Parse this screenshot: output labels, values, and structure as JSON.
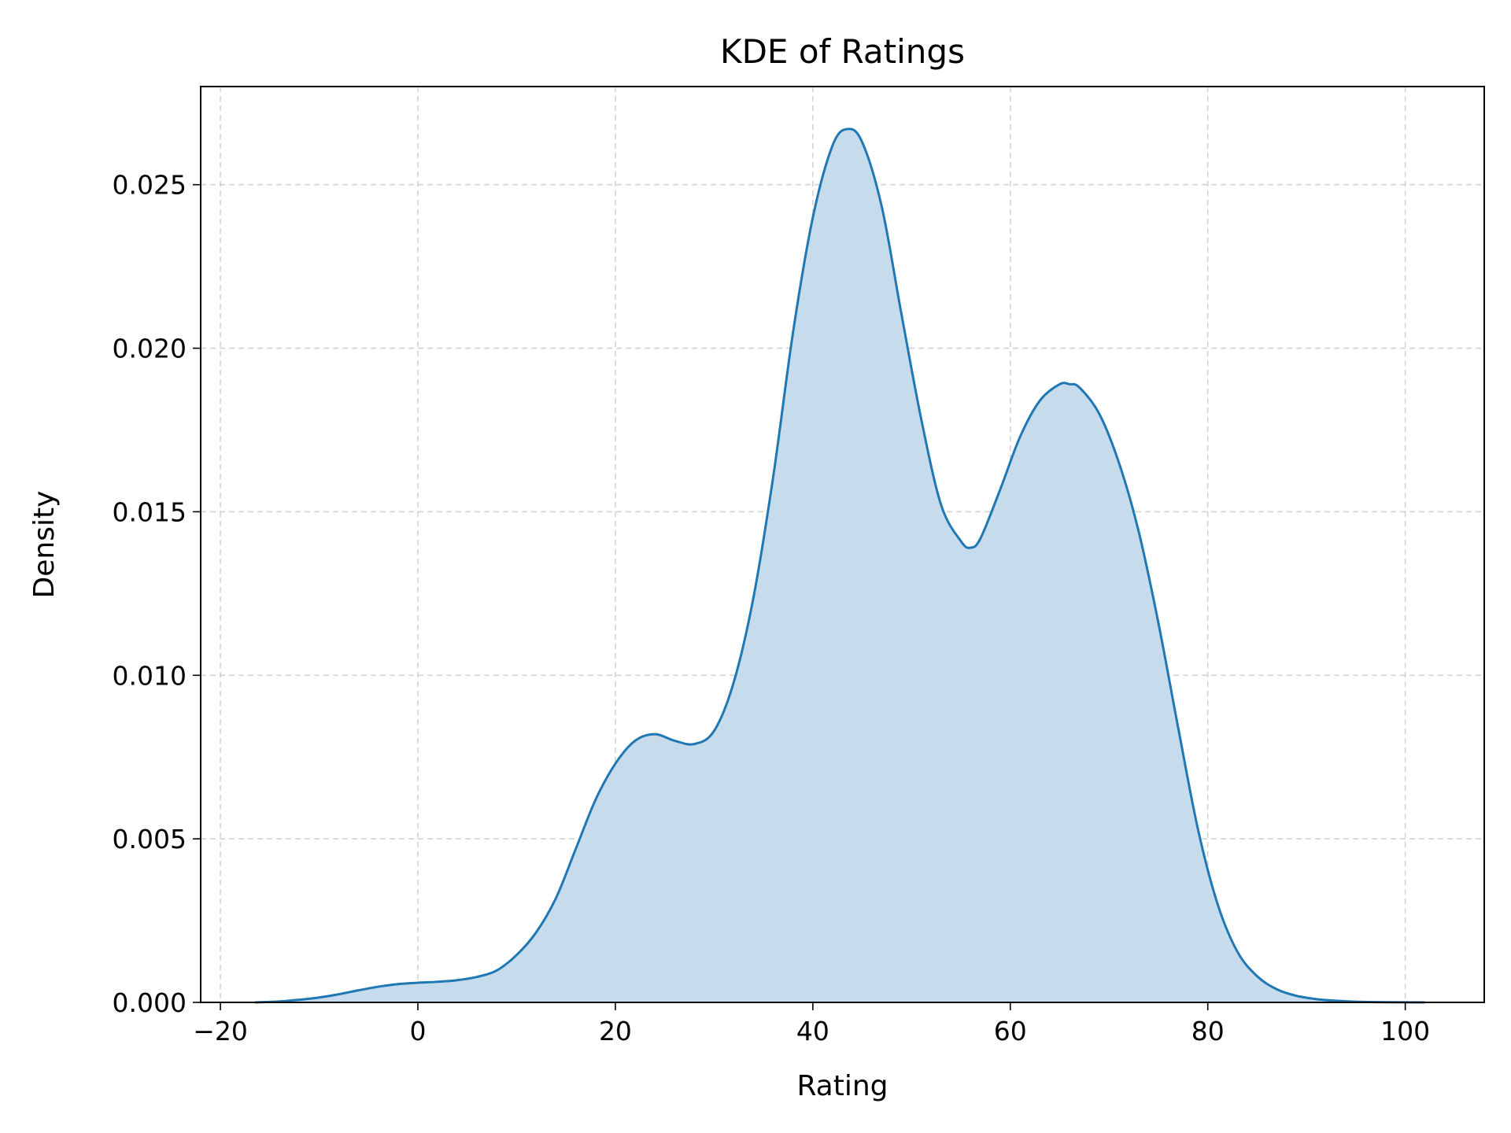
{
  "chart_data": {
    "type": "area",
    "title": "KDE of Ratings",
    "xlabel": "Rating",
    "ylabel": "Density",
    "xlim": [
      -22,
      108
    ],
    "ylim": [
      0,
      0.028
    ],
    "xticks": [
      -20,
      0,
      20,
      40,
      60,
      80,
      100
    ],
    "xtick_labels": [
      "−20",
      "0",
      "20",
      "40",
      "60",
      "80",
      "100"
    ],
    "yticks": [
      0,
      0.005,
      0.01,
      0.015,
      0.02,
      0.025
    ],
    "ytick_labels": [
      "0.000",
      "0.005",
      "0.010",
      "0.015",
      "0.020",
      "0.025"
    ],
    "grid": true,
    "line_color": "#1f77b4",
    "fill_color": "#c6dbec",
    "series": [
      {
        "x": [
          -16.5,
          -14,
          -12,
          -10,
          -8,
          -6,
          -4,
          -2,
          0,
          2,
          4,
          6,
          8,
          10,
          12,
          14,
          16,
          18,
          20,
          22,
          24,
          26,
          28,
          30,
          32,
          34,
          36,
          38,
          40,
          42,
          43.5,
          45,
          47,
          49,
          51,
          53,
          55,
          56,
          57,
          59,
          61,
          63,
          65,
          66,
          67,
          69,
          71,
          73,
          75,
          77,
          79,
          81,
          83,
          85,
          87,
          89,
          91,
          93,
          95,
          98,
          102
        ],
        "y": [
          0,
          3e-05,
          8e-05,
          0.00015,
          0.00025,
          0.00037,
          0.00048,
          0.00056,
          0.0006,
          0.00063,
          0.00068,
          0.00078,
          0.00098,
          0.00145,
          0.00215,
          0.0032,
          0.0047,
          0.0062,
          0.0073,
          0.008,
          0.0082,
          0.008,
          0.0079,
          0.0083,
          0.0098,
          0.0124,
          0.0161,
          0.0205,
          0.024,
          0.0262,
          0.0267,
          0.0263,
          0.0243,
          0.021,
          0.0178,
          0.0152,
          0.0141,
          0.0139,
          0.0142,
          0.0157,
          0.0173,
          0.0184,
          0.0189,
          0.0189,
          0.0188,
          0.018,
          0.0165,
          0.0144,
          0.0116,
          0.0084,
          0.0053,
          0.003,
          0.00155,
          0.0008,
          0.0004,
          0.0002,
          0.0001,
          5e-05,
          2e-05,
          5e-06,
          0
        ]
      }
    ]
  }
}
